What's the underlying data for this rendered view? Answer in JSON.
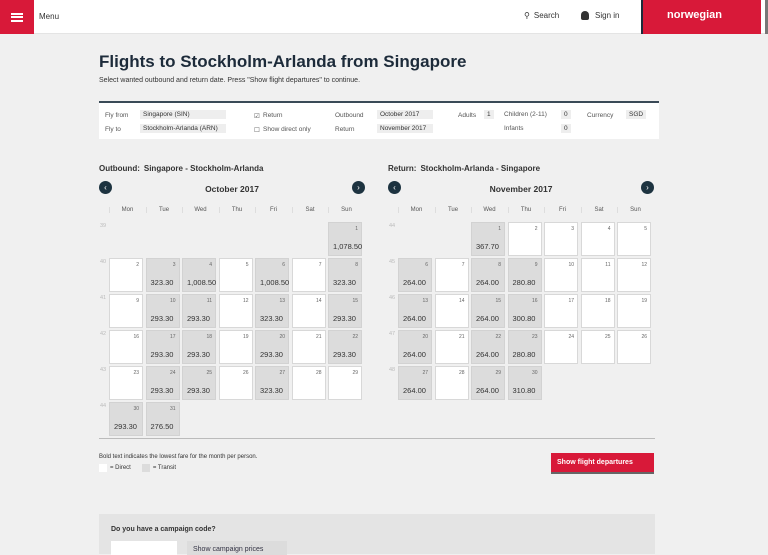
{
  "header": {
    "menu": "Menu",
    "search": "Search",
    "signin": "Sign in",
    "logo": "norwegian"
  },
  "page": {
    "title": "Flights to Stockholm-Arlanda from Singapore",
    "subtitle": "Select wanted outbound and return date. Press \"Show flight departures\" to continue."
  },
  "form": {
    "fly_from_label": "Fly from",
    "fly_from": "Singapore (SIN)",
    "fly_to_label": "Fly to",
    "fly_to": "Stockholm-Arlanda (ARN)",
    "return_label": "Return",
    "direct_label": "Show direct only",
    "outbound_label": "Outbound",
    "outbound": "October 2017",
    "return_month_label": "Return",
    "return_month": "November 2017",
    "adults_label": "Adults",
    "adults": "1",
    "children_label": "Children (2-11)",
    "children": "0",
    "infants_label": "Infants",
    "infants": "0",
    "currency_label": "Currency",
    "currency": "SGD",
    "return_checked": true,
    "direct_checked": false
  },
  "weekdays": [
    "Mon",
    "Tue",
    "Wed",
    "Thu",
    "Fri",
    "Sat",
    "Sun"
  ],
  "calendars": [
    {
      "label": "Outbound:",
      "route": "Singapore - Stockholm-Arlanda",
      "month": "October 2017",
      "weeks": [
        {
          "num": "39",
          "days": [
            null,
            null,
            null,
            null,
            null,
            null,
            {
              "d": "1",
              "p": "1,078.50"
            }
          ]
        },
        {
          "num": "40",
          "days": [
            {
              "d": "2"
            },
            {
              "d": "3",
              "p": "323.30"
            },
            {
              "d": "4",
              "p": "1,008.50"
            },
            {
              "d": "5"
            },
            {
              "d": "6",
              "p": "1,008.50"
            },
            {
              "d": "7"
            },
            {
              "d": "8",
              "p": "323.30"
            }
          ]
        },
        {
          "num": "41",
          "days": [
            {
              "d": "9"
            },
            {
              "d": "10",
              "p": "293.30"
            },
            {
              "d": "11",
              "p": "293.30"
            },
            {
              "d": "12"
            },
            {
              "d": "13",
              "p": "323.30"
            },
            {
              "d": "14"
            },
            {
              "d": "15",
              "p": "293.30"
            }
          ]
        },
        {
          "num": "42",
          "days": [
            {
              "d": "16"
            },
            {
              "d": "17",
              "p": "293.30"
            },
            {
              "d": "18",
              "p": "293.30"
            },
            {
              "d": "19"
            },
            {
              "d": "20",
              "p": "293.30"
            },
            {
              "d": "21"
            },
            {
              "d": "22",
              "p": "293.30"
            }
          ]
        },
        {
          "num": "43",
          "days": [
            {
              "d": "23"
            },
            {
              "d": "24",
              "p": "293.30"
            },
            {
              "d": "25",
              "p": "293.30"
            },
            {
              "d": "26"
            },
            {
              "d": "27",
              "p": "323.30"
            },
            {
              "d": "28"
            },
            {
              "d": "29"
            }
          ]
        },
        {
          "num": "44",
          "days": [
            {
              "d": "30",
              "p": "293.30"
            },
            {
              "d": "31",
              "p": "276.50"
            }
          ]
        }
      ]
    },
    {
      "label": "Return:",
      "route": "Stockholm-Arlanda - Singapore",
      "month": "November 2017",
      "weeks": [
        {
          "num": "44",
          "days": [
            null,
            null,
            {
              "d": "1",
              "p": "367.70"
            },
            {
              "d": "2"
            },
            {
              "d": "3"
            },
            {
              "d": "4"
            },
            {
              "d": "5"
            }
          ]
        },
        {
          "num": "45",
          "days": [
            {
              "d": "6",
              "p": "264.00"
            },
            {
              "d": "7"
            },
            {
              "d": "8",
              "p": "264.00"
            },
            {
              "d": "9",
              "p": "280.80"
            },
            {
              "d": "10"
            },
            {
              "d": "11"
            },
            {
              "d": "12"
            }
          ]
        },
        {
          "num": "46",
          "days": [
            {
              "d": "13",
              "p": "264.00"
            },
            {
              "d": "14"
            },
            {
              "d": "15",
              "p": "264.00"
            },
            {
              "d": "16",
              "p": "300.80"
            },
            {
              "d": "17"
            },
            {
              "d": "18"
            },
            {
              "d": "19"
            }
          ]
        },
        {
          "num": "47",
          "days": [
            {
              "d": "20",
              "p": "264.00"
            },
            {
              "d": "21"
            },
            {
              "d": "22",
              "p": "264.00"
            },
            {
              "d": "23",
              "p": "280.80"
            },
            {
              "d": "24"
            },
            {
              "d": "25"
            },
            {
              "d": "26"
            }
          ]
        },
        {
          "num": "48",
          "days": [
            {
              "d": "27",
              "p": "264.00"
            },
            {
              "d": "28"
            },
            {
              "d": "29",
              "p": "264.00"
            },
            {
              "d": "30",
              "p": "310.80"
            }
          ]
        }
      ]
    }
  ],
  "footer": {
    "note": "Bold text indicates the lowest fare for the month per person.",
    "direct": "= Direct",
    "transit": "= Transit",
    "show_button": "Show flight departures",
    "campaign_q": "Do you have a campaign code?",
    "campaign_button": "Show campaign prices"
  },
  "colors": {
    "brand": "#d81939",
    "dark": "#1d3340"
  }
}
